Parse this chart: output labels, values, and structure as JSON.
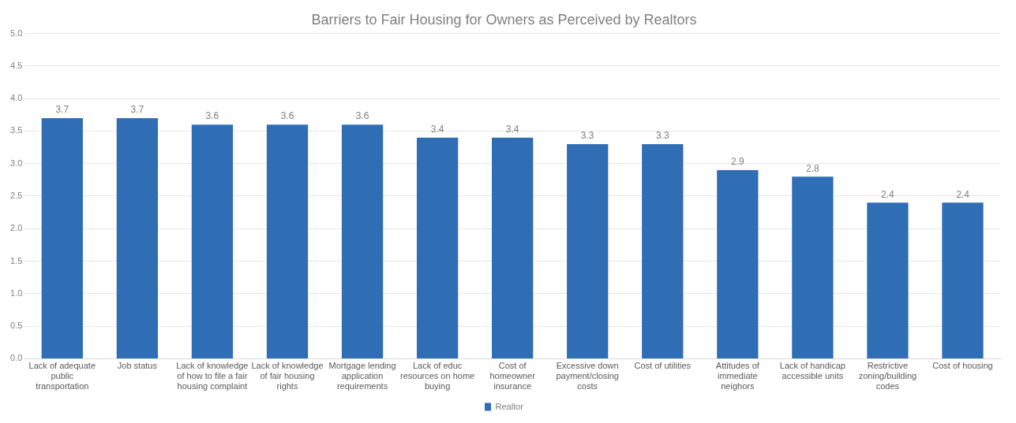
{
  "chart_data": {
    "type": "bar",
    "title": "Barriers to Fair Housing for Owners as Perceived by Realtors",
    "categories": [
      "Lack of adequate public transportation",
      "Job status",
      "Lack of knowledge of how to file a fair housing complaint",
      "Lack of knowledge of fair housing rights",
      "Mortgage lending application requirements",
      "Lack of educ resources on home buying",
      "Cost of homeowner insurance",
      "Excessive down payment/closing costs",
      "Cost of utilities",
      "Attitudes of immediate neighors",
      "Lack of handicap accessible units",
      "Restrictive zoning/building codes",
      "Cost of housing"
    ],
    "series": [
      {
        "name": "Realtor",
        "color": "#2f6eb5",
        "values": [
          3.7,
          3.7,
          3.6,
          3.6,
          3.6,
          3.4,
          3.4,
          3.3,
          3.3,
          2.9,
          2.8,
          2.4,
          2.4
        ]
      }
    ],
    "ylim": [
      0,
      5
    ],
    "yticks": [
      {
        "value": 0,
        "label": "0.0"
      },
      {
        "value": 0.5,
        "label": "0.5"
      },
      {
        "value": 1,
        "label": "1.0"
      },
      {
        "value": 1.5,
        "label": "1.5"
      },
      {
        "value": 2,
        "label": "2.0"
      },
      {
        "value": 2.5,
        "label": "2.5"
      },
      {
        "value": 3,
        "label": "3.0"
      },
      {
        "value": 3.5,
        "label": "3.5"
      },
      {
        "value": 4,
        "label": "4.0"
      },
      {
        "value": 4.5,
        "label": "4.5"
      },
      {
        "value": 5,
        "label": "5.0"
      }
    ],
    "grid": "y",
    "legend": "bottom",
    "data_labels": true
  }
}
